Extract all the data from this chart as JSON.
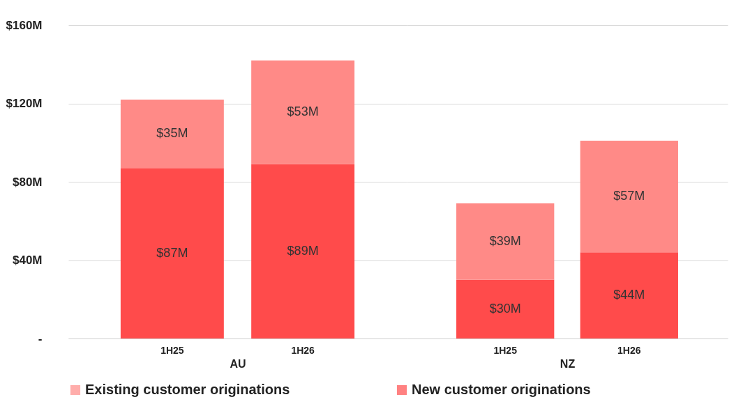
{
  "chart_data": [
    {
      "type": "bar",
      "stacked": true,
      "xlabel": "AU",
      "categories": [
        "1H25",
        "1H26"
      ],
      "series": [
        {
          "name": "New customer originations",
          "color": "#ff4b4b",
          "values": [
            87,
            89
          ],
          "value_labels": [
            "$87M",
            "$89M"
          ]
        },
        {
          "name": "Existing customer originations",
          "color": "#ff8a87",
          "values": [
            35,
            53
          ],
          "value_labels": [
            "$35M",
            "$53M"
          ]
        }
      ],
      "ylim": [
        0,
        160
      ],
      "yticks": [
        {
          "value": 0,
          "label": "-"
        },
        {
          "value": 40,
          "label": "$40M"
        },
        {
          "value": 80,
          "label": "$80M"
        },
        {
          "value": 120,
          "label": "$120M"
        },
        {
          "value": 160,
          "label": "$160M"
        }
      ],
      "grid": "y",
      "legend": "bottom"
    },
    {
      "type": "bar",
      "stacked": true,
      "xlabel": "NZ",
      "categories": [
        "1H25",
        "1H26"
      ],
      "series": [
        {
          "name": "New customer originations",
          "color": "#ff4b4b",
          "values": [
            30,
            44
          ],
          "value_labels": [
            "$30M",
            "$44M"
          ]
        },
        {
          "name": "Existing customer originations",
          "color": "#ff8a87",
          "values": [
            39,
            57
          ],
          "value_labels": [
            "$39M",
            "$57M"
          ]
        }
      ],
      "ylim": [
        0,
        160
      ],
      "yticks": [
        0,
        40,
        80,
        120,
        160
      ],
      "grid": "y",
      "legend": "bottom",
      "tick_labels": "x"
    }
  ]
}
